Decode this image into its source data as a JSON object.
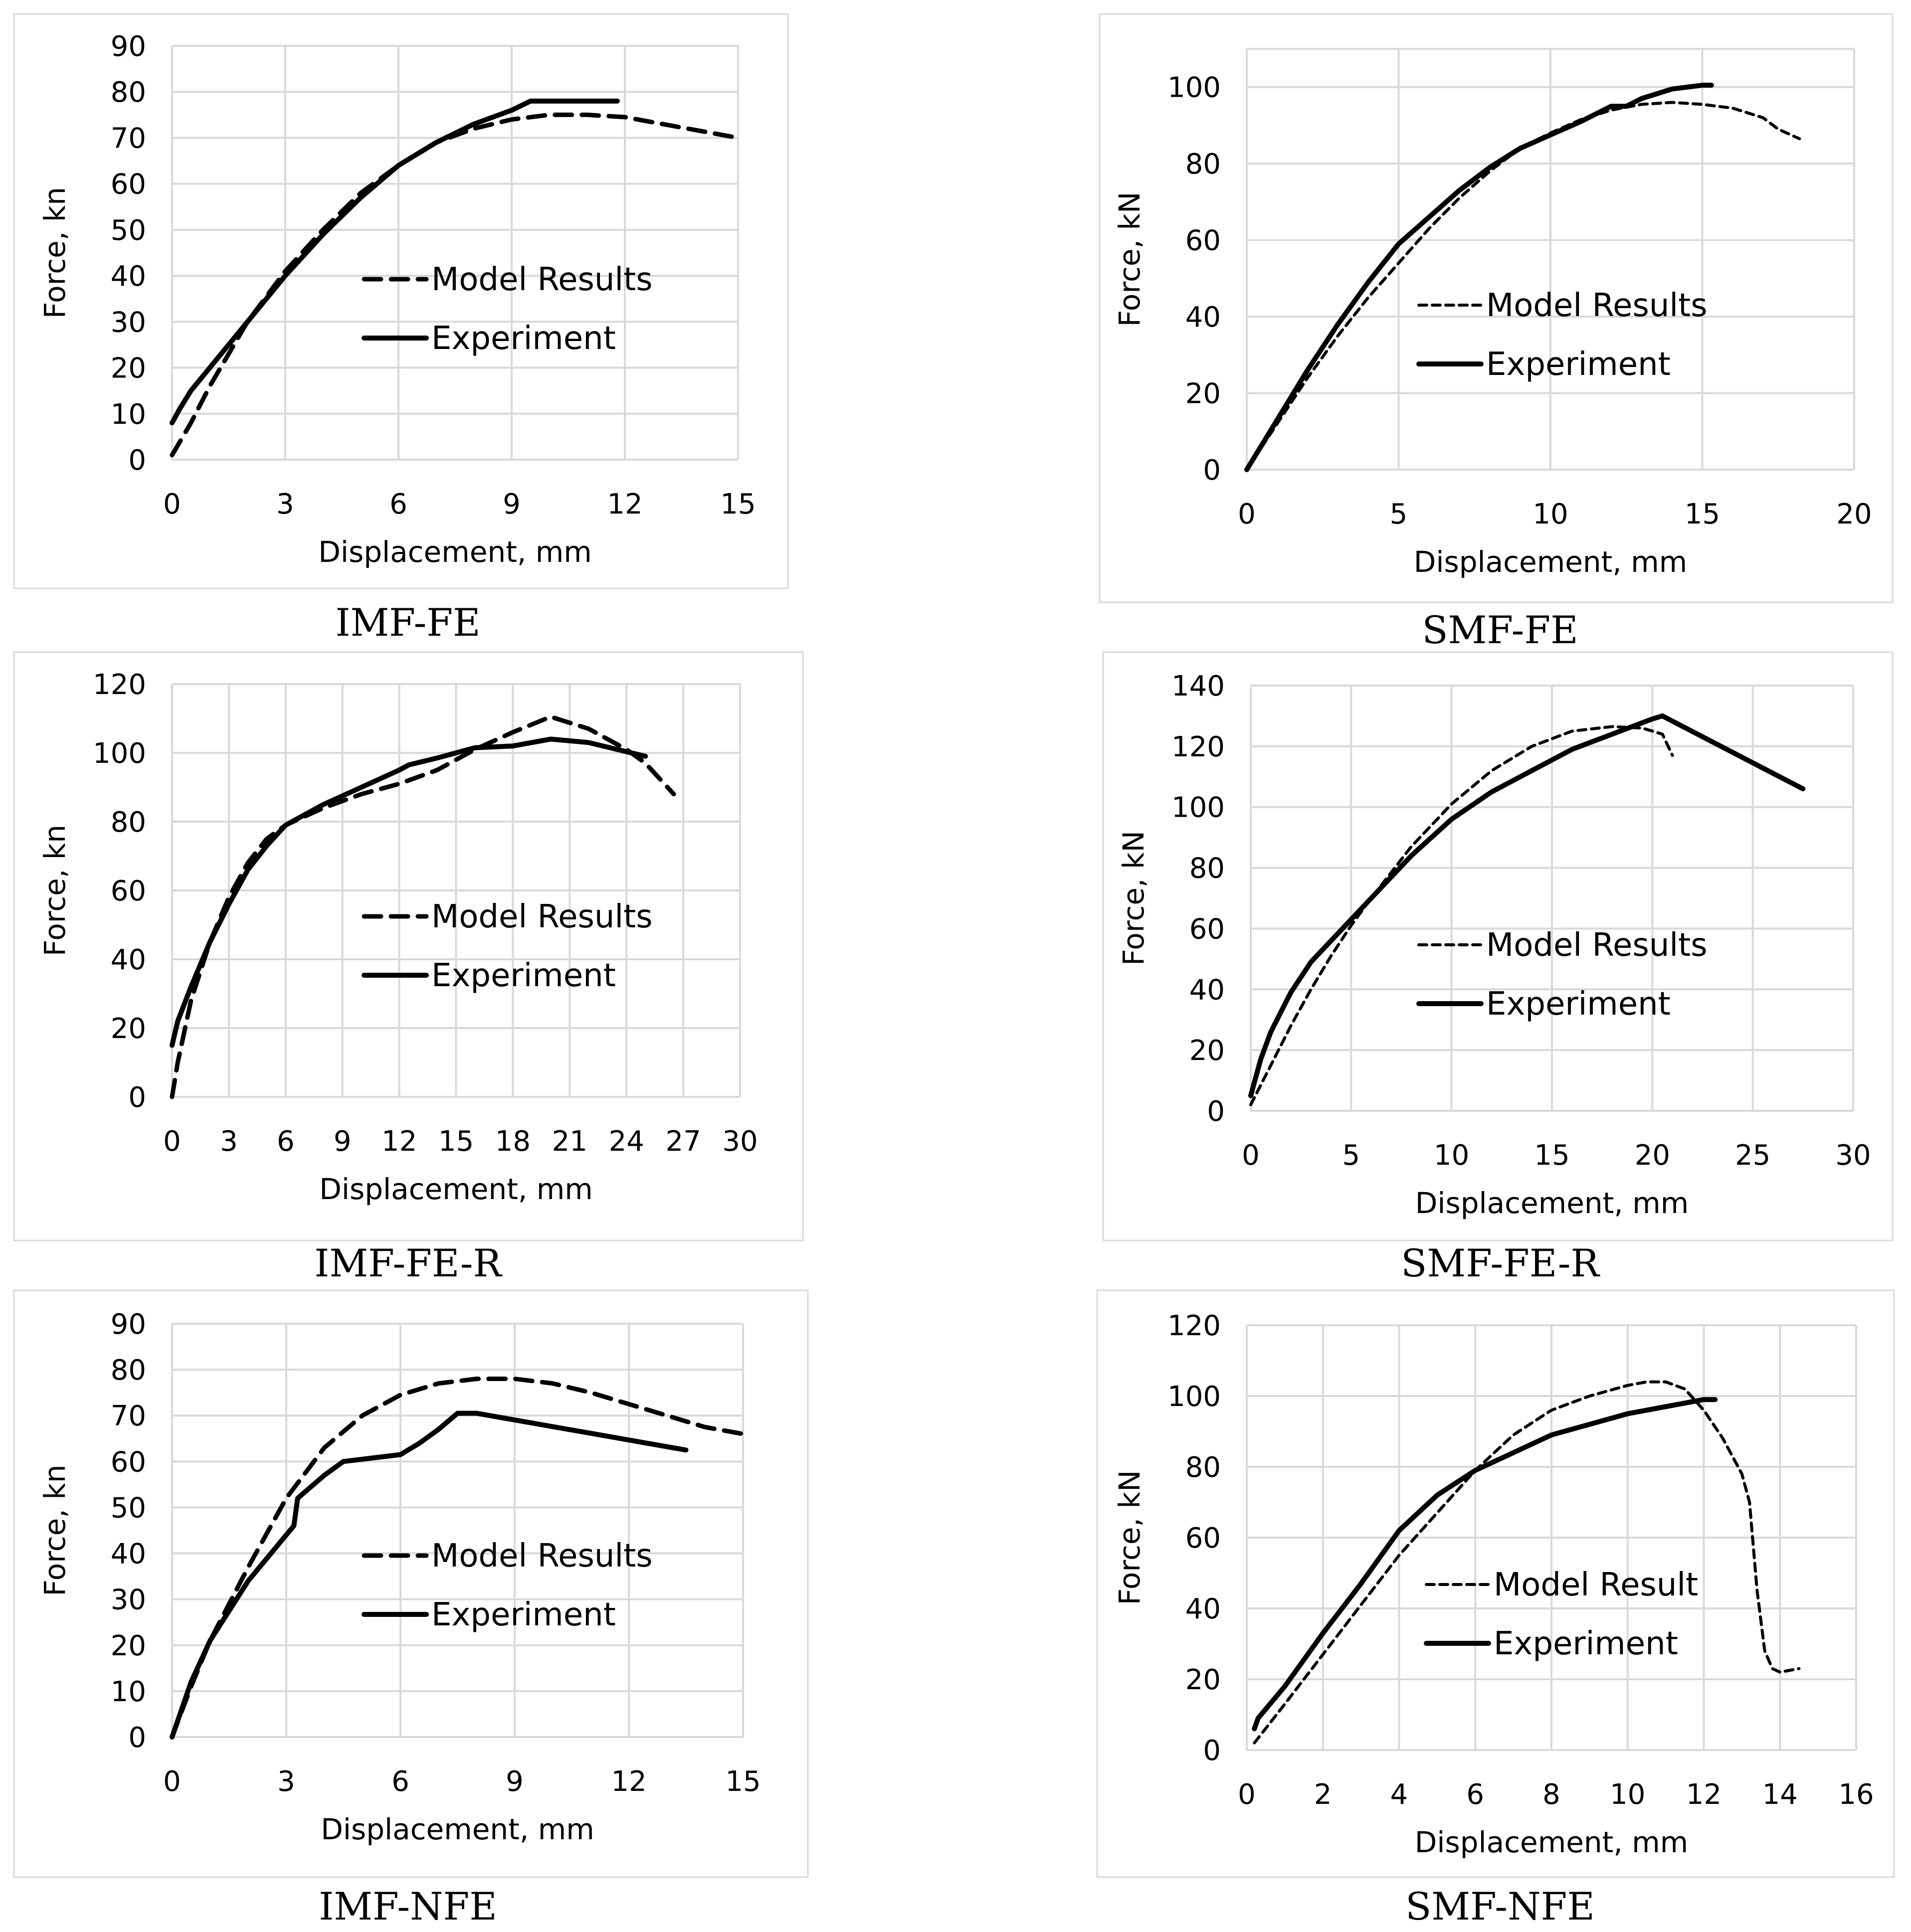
{
  "figure": {
    "background": "#ffffff",
    "line_color": "#000000",
    "grid_color": "#d9d9d9"
  },
  "chart_data": [
    {
      "type": "line",
      "caption": "IMF-FE",
      "xlabel": "Displacement, mm",
      "ylabel": "Force, kn",
      "xlim": [
        0,
        15
      ],
      "ylim": [
        0,
        90
      ],
      "xticks": [
        0,
        3,
        6,
        9,
        12,
        15
      ],
      "yticks": [
        0,
        10,
        20,
        30,
        40,
        50,
        60,
        70,
        80,
        90
      ],
      "series": [
        {
          "name": "Model Results",
          "style": "dashed",
          "x": [
            0,
            0.5,
            1,
            1.5,
            2,
            3,
            4,
            5,
            6,
            7,
            8,
            9,
            10,
            11,
            12,
            13,
            14,
            15
          ],
          "y": [
            1,
            8,
            16,
            23,
            30,
            41,
            50,
            58,
            64,
            69,
            72,
            74,
            75,
            75,
            74.5,
            73,
            71.5,
            70
          ]
        },
        {
          "name": "Experiment",
          "style": "solid",
          "x": [
            0,
            0.2,
            0.5,
            1,
            1.5,
            2,
            3,
            4,
            5,
            6,
            7,
            8,
            8.5,
            9,
            9.5,
            10,
            11,
            11.8
          ],
          "y": [
            8,
            11,
            15,
            20,
            25,
            30,
            40,
            49,
            57,
            64,
            69,
            73,
            74.5,
            76,
            78,
            78,
            78,
            78
          ]
        }
      ]
    },
    {
      "type": "line",
      "caption": "SMF-FE",
      "xlabel": "Displacement, mm",
      "ylabel": "Force, kN",
      "xlim": [
        0,
        20
      ],
      "ylim": [
        0,
        110
      ],
      "xticks": [
        0,
        5,
        10,
        15,
        20
      ],
      "yticks": [
        0,
        20,
        40,
        60,
        80,
        100
      ],
      "series": [
        {
          "name": "Model Results",
          "style": "dashed-thin",
          "x": [
            0,
            1,
            2,
            3,
            4,
            5,
            6,
            7,
            8,
            9,
            10,
            11,
            12,
            13,
            14,
            15,
            16,
            17,
            17.5,
            18.2
          ],
          "y": [
            0,
            12,
            24,
            35,
            45,
            54,
            63,
            71,
            78,
            84,
            88,
            91.5,
            94,
            95.5,
            96,
            95.5,
            94.5,
            92,
            89,
            86.5
          ]
        },
        {
          "name": "Experiment",
          "style": "solid",
          "x": [
            0,
            1,
            2,
            3,
            4,
            5,
            6,
            7,
            8,
            9,
            10,
            11,
            12,
            12.5,
            13,
            14,
            15,
            15.3
          ],
          "y": [
            0,
            13,
            26,
            38,
            49,
            59,
            66,
            73,
            79,
            84,
            87.5,
            91,
            95,
            95,
            97,
            99.5,
            100.5,
            100.5
          ]
        }
      ]
    },
    {
      "type": "line",
      "caption": "IMF-FE-R",
      "xlabel": "Displacement, mm",
      "ylabel": "Force, kn",
      "xlim": [
        0,
        30
      ],
      "ylim": [
        0,
        120
      ],
      "xticks": [
        0,
        3,
        6,
        9,
        12,
        15,
        18,
        21,
        24,
        27,
        30
      ],
      "yticks": [
        0,
        20,
        40,
        60,
        80,
        100,
        120
      ],
      "series": [
        {
          "name": "Model Results",
          "style": "dashed",
          "x": [
            0,
            0.3,
            1,
            2,
            3,
            4,
            5,
            6,
            8,
            10,
            12,
            14,
            16,
            18,
            20,
            22,
            24,
            25,
            26.5
          ],
          "y": [
            0,
            10,
            28,
            45,
            58,
            68,
            75,
            79,
            84,
            88,
            91,
            95,
            101,
            106,
            110.5,
            107,
            101,
            97,
            88
          ]
        },
        {
          "name": "Experiment",
          "style": "solid",
          "x": [
            0,
            0.3,
            1,
            2,
            3,
            4,
            5,
            6,
            8,
            10,
            12,
            12.5,
            14,
            16,
            18,
            20,
            22,
            25
          ],
          "y": [
            15,
            22,
            32,
            45,
            56,
            66,
            73,
            79,
            85,
            90,
            95,
            96.5,
            98.5,
            101.5,
            102,
            104,
            103,
            99
          ]
        }
      ]
    },
    {
      "type": "line",
      "caption": "SMF-FE-R",
      "xlabel": "Displacement, mm",
      "ylabel": "Force, kN",
      "xlim": [
        0,
        30
      ],
      "ylim": [
        0,
        140
      ],
      "xticks": [
        0,
        5,
        10,
        15,
        20,
        25,
        30
      ],
      "yticks": [
        0,
        20,
        40,
        60,
        80,
        100,
        120,
        140
      ],
      "series": [
        {
          "name": "Model Results",
          "style": "dashed-thin",
          "x": [
            0,
            1,
            2,
            3,
            4,
            5,
            6,
            8,
            10,
            12,
            14,
            16,
            18,
            19.5,
            20.5,
            21
          ],
          "y": [
            2,
            15,
            28,
            40,
            51,
            61,
            70,
            87,
            101,
            112,
            120,
            125,
            126.5,
            126,
            124,
            117
          ]
        },
        {
          "name": "Experiment",
          "style": "solid",
          "x": [
            0,
            0.5,
            1,
            2,
            3,
            4,
            5,
            6,
            8,
            10,
            12,
            14,
            16,
            18,
            20,
            20.5,
            27.5
          ],
          "y": [
            5,
            17,
            26,
            39,
            49,
            56,
            63,
            70,
            84,
            96,
            105,
            112,
            119,
            124,
            129,
            130,
            106
          ]
        }
      ]
    },
    {
      "type": "line",
      "caption": "IMF-NFE",
      "xlabel": "Displacement, mm",
      "ylabel": "Force, kn",
      "xlim": [
        0,
        15
      ],
      "ylim": [
        0,
        90
      ],
      "xticks": [
        0,
        3,
        6,
        9,
        12,
        15
      ],
      "yticks": [
        0,
        10,
        20,
        30,
        40,
        50,
        60,
        70,
        80,
        90
      ],
      "series": [
        {
          "name": "Model Results",
          "style": "dashed",
          "x": [
            0,
            0.5,
            1,
            2,
            3,
            4,
            5,
            6,
            7,
            8,
            9,
            10,
            11,
            12,
            13,
            14,
            15
          ],
          "y": [
            0,
            11,
            21,
            37,
            52,
            63,
            70,
            74.5,
            77,
            78,
            78,
            77,
            75,
            72.5,
            70,
            67.5,
            66
          ]
        },
        {
          "name": "Experiment",
          "style": "solid",
          "x": [
            0,
            0.5,
            1,
            2,
            3,
            3.2,
            3.3,
            4,
            4.5,
            5,
            5.5,
            6,
            6.5,
            7,
            7.5,
            8,
            13.5
          ],
          "y": [
            0,
            12,
            21,
            34,
            44,
            46,
            52,
            57,
            60,
            60.5,
            61,
            61.5,
            64,
            67,
            70.5,
            70.5,
            62.5
          ]
        }
      ]
    },
    {
      "type": "line",
      "caption": "SMF-NFE",
      "xlabel": "Displacement, mm",
      "ylabel": "Force, kN",
      "xlim": [
        0,
        16
      ],
      "ylim": [
        0,
        120
      ],
      "xticks": [
        0,
        2,
        4,
        6,
        8,
        10,
        12,
        14,
        16
      ],
      "yticks": [
        0,
        20,
        40,
        60,
        80,
        100,
        120
      ],
      "series": [
        {
          "name": "Model Result",
          "style": "dashed-thin",
          "x": [
            0.2,
            1,
            2,
            3,
            4,
            5,
            6,
            7,
            8,
            9,
            10,
            10.5,
            11,
            11.5,
            12,
            12.5,
            13,
            13.2,
            13.4,
            13.6,
            13.8,
            14,
            14.5
          ],
          "y": [
            2,
            13,
            27,
            41,
            55,
            67,
            79,
            89,
            96,
            100,
            103,
            104,
            104,
            102,
            96,
            88,
            78,
            70,
            45,
            28,
            23,
            22,
            23
          ]
        },
        {
          "name": "Experiment",
          "style": "solid",
          "x": [
            0.2,
            0.3,
            1,
            2,
            3,
            4,
            5,
            6,
            7,
            8,
            9,
            10,
            11,
            12,
            12.3
          ],
          "y": [
            6,
            9,
            18,
            33,
            47,
            62,
            72,
            79,
            84,
            89,
            92,
            95,
            97,
            99,
            99
          ]
        }
      ]
    }
  ]
}
